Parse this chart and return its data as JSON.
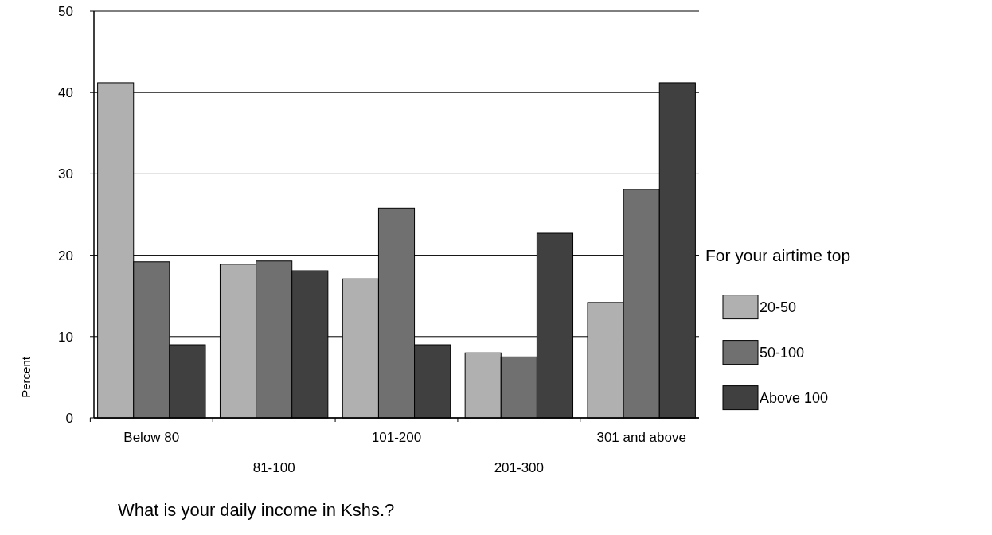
{
  "chart_data": {
    "type": "bar",
    "xlabel": "What is your daily income in Kshs.?",
    "ylabel": "Percent",
    "legend_title": "For your airtime top",
    "categories": [
      "Below 80",
      "81-100",
      "101-200",
      "201-300",
      "301 and above"
    ],
    "series": [
      {
        "name": "20-50",
        "color": "#b0b0b0",
        "values": [
          41.2,
          18.9,
          17.1,
          8.0,
          14.2
        ]
      },
      {
        "name": "50-100",
        "color": "#707070",
        "values": [
          19.2,
          19.3,
          25.8,
          7.5,
          28.1
        ]
      },
      {
        "name": "Above 100",
        "color": "#404040",
        "values": [
          9.0,
          18.1,
          9.0,
          22.7,
          41.2
        ]
      }
    ],
    "ylim": [
      0,
      50
    ],
    "yticks": [
      0,
      10,
      20,
      30,
      40,
      50
    ],
    "grid": "y",
    "legend": "right"
  }
}
